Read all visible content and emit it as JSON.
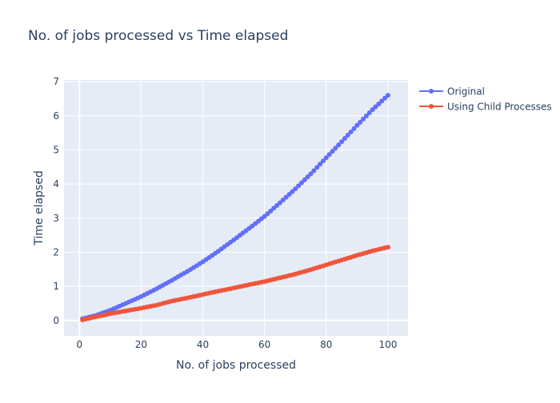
{
  "chart_data": {
    "type": "line",
    "title": "No. of jobs processed vs Time elapsed",
    "xlabel": "No. of jobs processed",
    "ylabel": "Time elapsed",
    "xlim": [
      -5,
      106.5
    ],
    "ylim": [
      -0.45,
      7.05
    ],
    "xticks": [
      0,
      20,
      40,
      60,
      80,
      100
    ],
    "yticks": [
      0,
      1,
      2,
      3,
      4,
      5,
      6,
      7
    ],
    "grid": true,
    "legend_position": "top-right",
    "x": [
      1,
      5,
      10,
      15,
      20,
      25,
      30,
      35,
      40,
      45,
      50,
      55,
      60,
      65,
      70,
      75,
      80,
      85,
      90,
      95,
      100
    ],
    "series": [
      {
        "name": "Original",
        "color": "#636efa",
        "values": [
          0.05,
          0.14,
          0.3,
          0.5,
          0.7,
          0.93,
          1.18,
          1.44,
          1.72,
          2.03,
          2.36,
          2.7,
          3.05,
          3.45,
          3.86,
          4.3,
          4.77,
          5.24,
          5.72,
          6.18,
          6.6
        ]
      },
      {
        "name": "Using Child Processes",
        "color": "#ef553b",
        "values": [
          0.02,
          0.1,
          0.2,
          0.28,
          0.36,
          0.45,
          0.57,
          0.66,
          0.76,
          0.86,
          0.95,
          1.05,
          1.14,
          1.25,
          1.36,
          1.49,
          1.63,
          1.77,
          1.91,
          2.04,
          2.15
        ]
      }
    ]
  }
}
